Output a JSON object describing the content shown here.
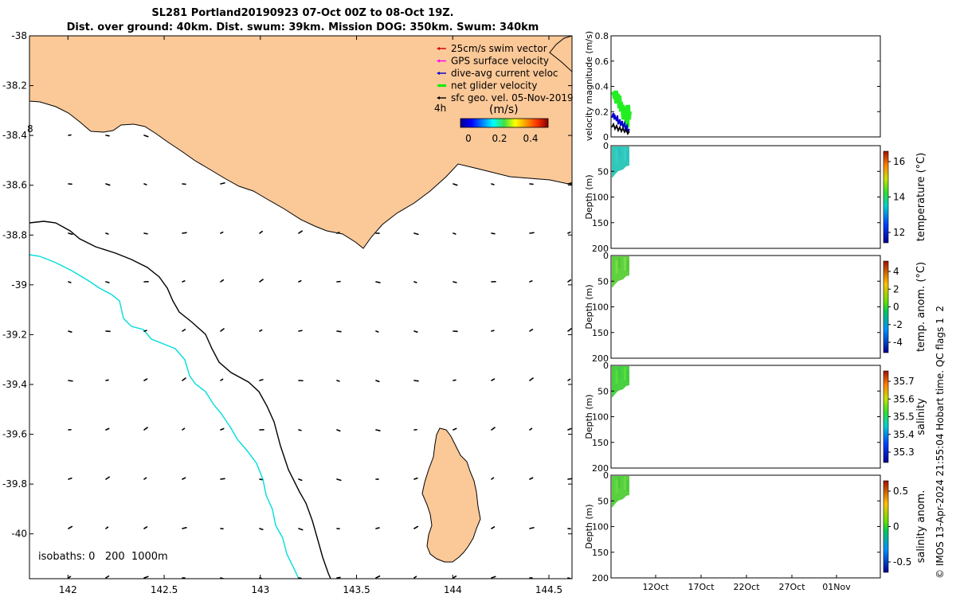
{
  "title": {
    "line1": "SL281 Portland20190923 07-Oct 00Z to 08-Oct 19Z.",
    "line2": "Dist. over ground: 40km. Dist. swum: 39km. Mission DOG: 350km. Swum: 340km"
  },
  "map": {
    "lat_ticks": [
      "-38",
      "-38.2",
      "-38.4",
      "-38.6",
      "-38.8",
      "-39",
      "-39.2",
      "-39.4",
      "-39.6",
      "-39.8",
      "-40"
    ],
    "lon_ticks": [
      "142",
      "142.5",
      "143",
      "143.5",
      "144",
      "144.5"
    ],
    "lat_range": [
      -40.18,
      -38.0
    ],
    "lon_range": [
      141.8,
      144.62
    ],
    "isobath_text": "isobaths: 0   200  1000m",
    "label_4h": "4h",
    "label_8": "8",
    "legend": [
      {
        "label": "25cm/s swim vector",
        "color": "#d00000"
      },
      {
        "label": "GPS surface velocity",
        "color": "#ff00ff"
      },
      {
        "label": "dive-avg current veloc",
        "color": "#0000cc"
      },
      {
        "label": "net glider velocity",
        "color": "#00ee00"
      },
      {
        "label": "sfc geo. vel. 05-Nov-2019",
        "color": "#000000"
      }
    ],
    "colorbar": {
      "unit": "(m/s)",
      "ticks": [
        "0",
        "0.2",
        "0.4"
      ]
    },
    "land_color": "#fbc898",
    "isobath_colors": {
      "200": "#000000",
      "1000": "#00dddd"
    }
  },
  "panels": {
    "velocity": {
      "ylabel": "velocity magnitude (m/s)",
      "yticks": [
        "0.8",
        "0.6",
        "0.4",
        "0.2",
        "0"
      ]
    },
    "temperature": {
      "ylabel": "Depth (m)",
      "cbar_label": "temperature (°C)",
      "cbar_ticks": [
        "16",
        "14",
        "12"
      ]
    },
    "temp_anom": {
      "ylabel": "Depth (m)",
      "cbar_label": "temp. anom. (°C)",
      "cbar_ticks": [
        "4",
        "2",
        "0",
        "-2",
        "-4"
      ]
    },
    "salinity": {
      "ylabel": "Depth (m)",
      "cbar_label": "salinity",
      "cbar_ticks": [
        "35.7",
        "35.6",
        "35.5",
        "35.4",
        "35.3"
      ]
    },
    "sal_anom": {
      "ylabel": "Depth (m)",
      "cbar_label": "salinity anom.",
      "cbar_ticks": [
        "0.5",
        "0",
        "-0.5"
      ]
    },
    "depth_ticks": [
      "0",
      "50",
      "100",
      "150",
      "200"
    ],
    "time_ticks": [
      "12Oct",
      "17Oct",
      "22Oct",
      "27Oct",
      "01Nov"
    ]
  },
  "credit": "© IMOS 13-Apr-2024 21:55:04 Hobart time. QC flags 1  2"
}
